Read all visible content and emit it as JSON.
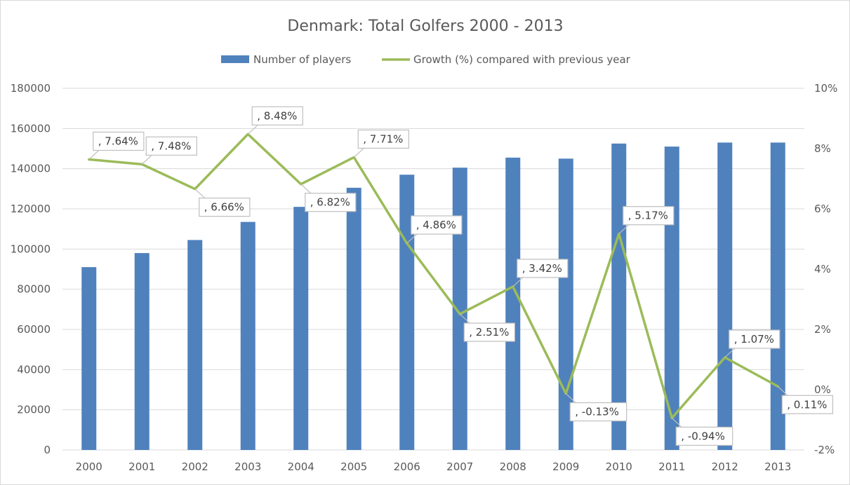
{
  "chart_data": {
    "type": "bar",
    "title": "Denmark: Total Golfers 2000 - 2013",
    "categories": [
      "2000",
      "2001",
      "2002",
      "2003",
      "2004",
      "2005",
      "2006",
      "2007",
      "2008",
      "2009",
      "2010",
      "2011",
      "2012",
      "2013"
    ],
    "series": [
      {
        "name": "Number of players",
        "type": "bar",
        "axis": "left",
        "color": "#4f81bd",
        "values": [
          91000,
          98000,
          104500,
          113500,
          121000,
          130500,
          137000,
          140500,
          145500,
          145000,
          152500,
          151000,
          153000,
          153000
        ]
      },
      {
        "name": "Growth (%) compared with previous year",
        "type": "line",
        "axis": "right",
        "color": "#9bbb59",
        "values": [
          7.64,
          7.48,
          6.66,
          8.48,
          6.82,
          7.71,
          4.86,
          2.51,
          3.42,
          -0.13,
          5.17,
          -0.94,
          1.07,
          0.11
        ],
        "data_labels": [
          ", 7.64%",
          ", 7.48%",
          ", 6.66%",
          ", 8.48%",
          ", 6.82%",
          ", 7.71%",
          ", 4.86%",
          ", 2.51%",
          ", 3.42%",
          ", -0.13%",
          ", 5.17%",
          ", -0.94%",
          ", 1.07%",
          ", 0.11%"
        ]
      }
    ],
    "y_left": {
      "ylim": [
        0,
        180000
      ],
      "ticks": [
        0,
        20000,
        40000,
        60000,
        80000,
        100000,
        120000,
        140000,
        160000,
        180000
      ],
      "tick_labels": [
        "0",
        "20000",
        "40000",
        "60000",
        "80000",
        "100000",
        "120000",
        "140000",
        "160000",
        "180000"
      ]
    },
    "y_right": {
      "ylim": [
        -2,
        10
      ],
      "ticks": [
        -2,
        0,
        2,
        4,
        6,
        8,
        10
      ],
      "tick_labels": [
        "-2%",
        "0%",
        "2%",
        "4%",
        "6%",
        "8%",
        "10%"
      ]
    },
    "grid": true,
    "legend_position": "top"
  }
}
